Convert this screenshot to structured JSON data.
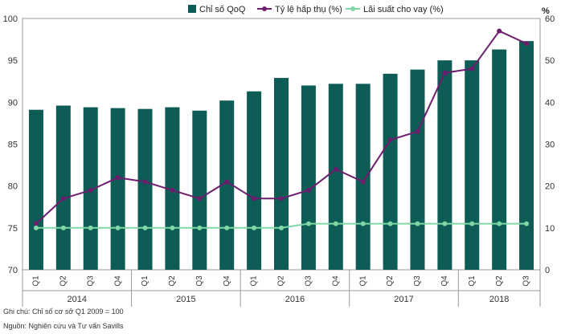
{
  "chart_data": {
    "type": "bar+line",
    "legend": [
      {
        "label": "Chỉ số QoQ",
        "kind": "bar",
        "color": "#0d5c55"
      },
      {
        "label": "Tỷ lệ hấp thụ (%)",
        "kind": "line",
        "color": "#6d1d6e"
      },
      {
        "label": "Lãi suất cho vay (%)",
        "kind": "line",
        "color": "#7fd8a3"
      }
    ],
    "categories": [
      "Q1",
      "Q2",
      "Q3",
      "Q4",
      "Q1",
      "Q2",
      "Q3",
      "Q4",
      "Q1",
      "Q2",
      "Q3",
      "Q4",
      "Q1",
      "Q2",
      "Q3",
      "Q4",
      "Q1",
      "Q2",
      "Q3"
    ],
    "years": [
      {
        "label": "2014",
        "start": 0,
        "end": 3
      },
      {
        "label": "2015",
        "start": 4,
        "end": 7
      },
      {
        "label": "2016",
        "start": 8,
        "end": 11
      },
      {
        "label": "2017",
        "start": 12,
        "end": 15
      },
      {
        "label": "2018",
        "start": 16,
        "end": 18
      }
    ],
    "series": [
      {
        "name": "Chỉ số QoQ",
        "axis": "left",
        "values": [
          89.1,
          89.6,
          89.4,
          89.3,
          89.2,
          89.4,
          89.0,
          90.2,
          91.3,
          92.9,
          92.0,
          92.2,
          92.2,
          93.4,
          93.9,
          95.0,
          95.0,
          96.3,
          97.3
        ]
      },
      {
        "name": "Tỷ lệ hấp thụ (%)",
        "axis": "right",
        "values": [
          11,
          17,
          19,
          22,
          21,
          19,
          17,
          21,
          17,
          17,
          19,
          24,
          21,
          31,
          33,
          47,
          48,
          57,
          54
        ]
      },
      {
        "name": "Lãi suất cho vay (%)",
        "axis": "right",
        "values": [
          10,
          10,
          10,
          10,
          10,
          10,
          10,
          10,
          10,
          10,
          11,
          11,
          11,
          11,
          11,
          11,
          11,
          11,
          11
        ]
      }
    ],
    "y_left": {
      "min": 70,
      "max": 100,
      "ticks": [
        70,
        75,
        80,
        85,
        90,
        95,
        100
      ]
    },
    "y_right": {
      "min": 0,
      "max": 60,
      "ticks": [
        0,
        10,
        20,
        30,
        40,
        50,
        60
      ],
      "unit_label": "%"
    },
    "grid": false
  },
  "footnotes": [
    "Ghi chú: Chỉ số cơ sở Q1 2009 = 100",
    "Nguồn: Nghiên cứu và Tư vấn Savills"
  ]
}
